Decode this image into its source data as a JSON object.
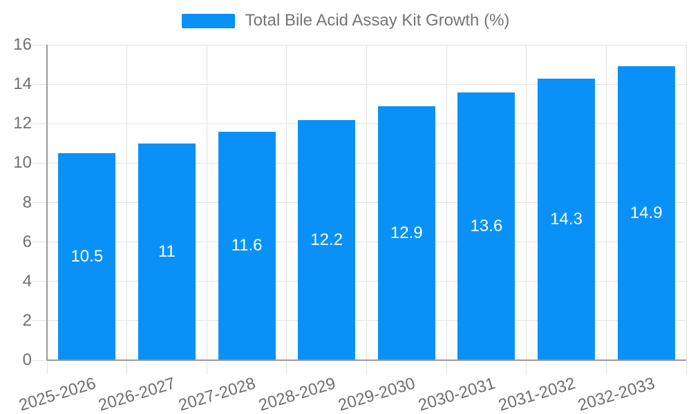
{
  "legend": {
    "label": "Total Bile Acid Assay Kit Growth (%)"
  },
  "colors": {
    "bar": "#0a91f7",
    "grid": "#e2e2e2",
    "axis": "#999999",
    "tick_text": "#6f6f6f",
    "legend_text": "#747474",
    "value_label": "#ffffff",
    "background": "#ffffff"
  },
  "chart_data": {
    "type": "bar",
    "title": "Total Bile Acid Assay Kit Growth (%)",
    "categories": [
      "2025-2026",
      "2026-2027",
      "2027-2028",
      "2028-2029",
      "2029-2030",
      "2030-2031",
      "2031-2032",
      "2032-2033"
    ],
    "values": [
      10.5,
      11,
      11.6,
      12.2,
      12.9,
      13.6,
      14.3,
      14.9
    ],
    "value_labels": [
      "10.5",
      "11",
      "11.6",
      "12.2",
      "12.9",
      "13.6",
      "14.3",
      "14.9"
    ],
    "xlabel": "",
    "ylabel": "",
    "ylim": [
      0,
      16
    ],
    "yticks": [
      0,
      2,
      4,
      6,
      8,
      10,
      12,
      14,
      16
    ],
    "grid": true,
    "legend_position": "top-center",
    "x_tick_label_rotation_deg": -17,
    "series_name": "Total Bile Acid Assay Kit Growth (%)"
  }
}
